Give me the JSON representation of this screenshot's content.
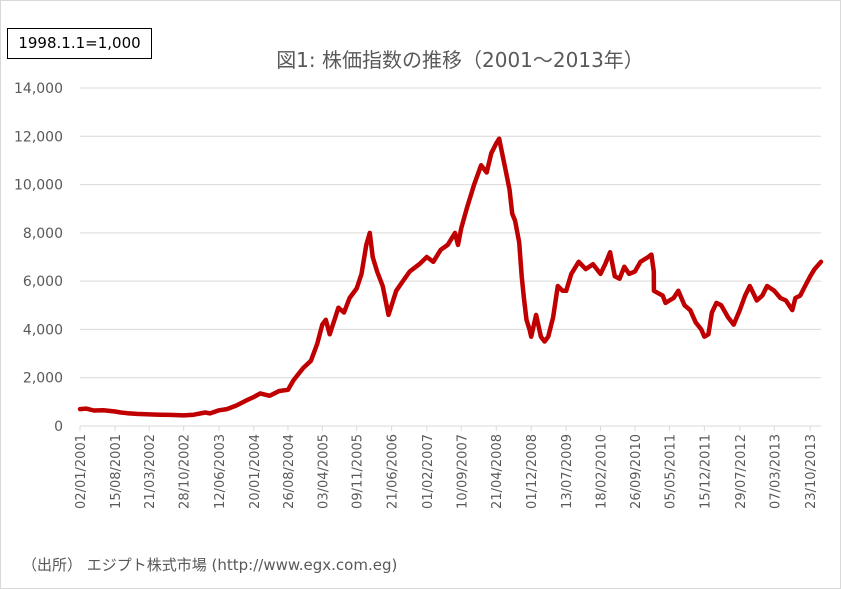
{
  "base_note": "1998.1.1=1,000",
  "source_note": "（出所） エジプト株式市場 (http://www.egx.com.eg)",
  "colors": {
    "series": "#c00000",
    "grid": "#d9d9d9",
    "text": "#595959"
  },
  "chart_data": {
    "type": "line",
    "title": "図1: 株価指数の推移（2001～2013年）",
    "xlabel": "",
    "ylabel": "",
    "ylim": [
      0,
      14000
    ],
    "yticks": [
      0,
      2000,
      4000,
      6000,
      8000,
      10000,
      12000,
      14000
    ],
    "ytick_labels": [
      "0",
      "2,000",
      "4,000",
      "6,000",
      "8,000",
      "10,000",
      "12,000",
      "14,000"
    ],
    "xlim": [
      "2001-01-02",
      "2013-12-31"
    ],
    "xticks": [
      "2001-01-02",
      "2001-08-15",
      "2002-03-21",
      "2002-10-28",
      "2003-06-12",
      "2004-01-20",
      "2004-08-26",
      "2005-04-03",
      "2005-11-09",
      "2006-06-21",
      "2007-02-01",
      "2007-09-10",
      "2008-04-21",
      "2008-12-01",
      "2009-07-13",
      "2010-02-18",
      "2010-09-26",
      "2011-05-05",
      "2011-12-15",
      "2012-07-29",
      "2013-03-07",
      "2013-10-23"
    ],
    "xtick_labels": [
      "02/01/2001",
      "15/08/2001",
      "21/03/2002",
      "28/10/2002",
      "12/06/2003",
      "20/01/2004",
      "26/08/2004",
      "03/04/2005",
      "09/11/2005",
      "21/06/2006",
      "01/02/2007",
      "10/09/2007",
      "21/04/2008",
      "01/12/2008",
      "13/07/2009",
      "18/02/2010",
      "26/09/2010",
      "05/05/2011",
      "15/12/2011",
      "29/07/2012",
      "07/03/2013",
      "23/10/2013"
    ],
    "grid": "horizontal",
    "legend": "none",
    "series": [
      {
        "color": "#c00000",
        "points": [
          [
            "2001-01-02",
            700
          ],
          [
            "2001-02-10",
            720
          ],
          [
            "2001-04-01",
            640
          ],
          [
            "2001-06-01",
            650
          ],
          [
            "2001-08-15",
            600
          ],
          [
            "2001-09-20",
            560
          ],
          [
            "2001-11-01",
            530
          ],
          [
            "2002-01-01",
            500
          ],
          [
            "2002-03-21",
            480
          ],
          [
            "2002-06-01",
            470
          ],
          [
            "2002-08-01",
            460
          ],
          [
            "2002-10-28",
            440
          ],
          [
            "2003-01-01",
            470
          ],
          [
            "2003-03-15",
            560
          ],
          [
            "2003-04-15",
            520
          ],
          [
            "2003-06-12",
            650
          ],
          [
            "2003-08-01",
            700
          ],
          [
            "2003-10-01",
            850
          ],
          [
            "2003-12-01",
            1050
          ],
          [
            "2004-01-20",
            1200
          ],
          [
            "2004-03-01",
            1350
          ],
          [
            "2004-05-01",
            1250
          ],
          [
            "2004-07-01",
            1450
          ],
          [
            "2004-08-26",
            1500
          ],
          [
            "2004-10-01",
            1900
          ],
          [
            "2004-12-01",
            2400
          ],
          [
            "2005-01-20",
            2700
          ],
          [
            "2005-03-01",
            3400
          ],
          [
            "2005-04-03",
            4200
          ],
          [
            "2005-04-25",
            4400
          ],
          [
            "2005-05-20",
            3800
          ],
          [
            "2005-06-20",
            4400
          ],
          [
            "2005-07-15",
            4900
          ],
          [
            "2005-08-20",
            4700
          ],
          [
            "2005-09-25",
            5300
          ],
          [
            "2005-11-09",
            5700
          ],
          [
            "2005-12-10",
            6300
          ],
          [
            "2006-01-10",
            7500
          ],
          [
            "2006-02-01",
            8000
          ],
          [
            "2006-02-20",
            7000
          ],
          [
            "2006-03-20",
            6400
          ],
          [
            "2006-04-25",
            5800
          ],
          [
            "2006-05-20",
            5000
          ],
          [
            "2006-06-01",
            4600
          ],
          [
            "2006-06-21",
            5000
          ],
          [
            "2006-07-20",
            5600
          ],
          [
            "2006-09-01",
            6000
          ],
          [
            "2006-10-15",
            6400
          ],
          [
            "2006-12-15",
            6700
          ],
          [
            "2007-02-01",
            7000
          ],
          [
            "2007-03-15",
            6800
          ],
          [
            "2007-05-01",
            7300
          ],
          [
            "2007-06-15",
            7500
          ],
          [
            "2007-08-01",
            8000
          ],
          [
            "2007-08-20",
            7500
          ],
          [
            "2007-09-10",
            8200
          ],
          [
            "2007-10-15",
            9000
          ],
          [
            "2007-12-01",
            10000
          ],
          [
            "2008-01-15",
            10800
          ],
          [
            "2008-02-20",
            10500
          ],
          [
            "2008-03-20",
            11300
          ],
          [
            "2008-04-21",
            11700
          ],
          [
            "2008-05-10",
            11900
          ],
          [
            "2008-06-01",
            11200
          ],
          [
            "2008-06-20",
            10600
          ],
          [
            "2008-07-15",
            9800
          ],
          [
            "2008-08-01",
            8800
          ],
          [
            "2008-08-20",
            8500
          ],
          [
            "2008-09-15",
            7600
          ],
          [
            "2008-10-01",
            6200
          ],
          [
            "2008-10-15",
            5300
          ],
          [
            "2008-11-01",
            4400
          ],
          [
            "2008-11-20",
            4000
          ],
          [
            "2008-12-01",
            3700
          ],
          [
            "2009-01-01",
            4600
          ],
          [
            "2009-02-01",
            3700
          ],
          [
            "2009-02-25",
            3500
          ],
          [
            "2009-03-20",
            3700
          ],
          [
            "2009-04-20",
            4500
          ],
          [
            "2009-05-20",
            5800
          ],
          [
            "2009-06-20",
            5600
          ],
          [
            "2009-07-13",
            5600
          ],
          [
            "2009-08-15",
            6300
          ],
          [
            "2009-10-01",
            6800
          ],
          [
            "2009-11-15",
            6500
          ],
          [
            "2010-01-01",
            6700
          ],
          [
            "2010-02-18",
            6300
          ],
          [
            "2010-03-20",
            6700
          ],
          [
            "2010-04-20",
            7200
          ],
          [
            "2010-05-20",
            6200
          ],
          [
            "2010-06-20",
            6100
          ],
          [
            "2010-07-20",
            6600
          ],
          [
            "2010-08-20",
            6300
          ],
          [
            "2010-09-26",
            6400
          ],
          [
            "2010-11-01",
            6800
          ],
          [
            "2010-12-20",
            7000
          ],
          [
            "2011-01-10",
            7100
          ],
          [
            "2011-01-25",
            6400
          ],
          [
            "2011-01-26",
            5600
          ],
          [
            "2011-03-23",
            5400
          ],
          [
            "2011-04-10",
            5100
          ],
          [
            "2011-05-05",
            5200
          ],
          [
            "2011-06-01",
            5300
          ],
          [
            "2011-07-01",
            5600
          ],
          [
            "2011-08-10",
            5000
          ],
          [
            "2011-09-15",
            4800
          ],
          [
            "2011-10-20",
            4300
          ],
          [
            "2011-11-25",
            4000
          ],
          [
            "2011-12-15",
            3700
          ],
          [
            "2012-01-10",
            3800
          ],
          [
            "2012-02-01",
            4700
          ],
          [
            "2012-03-01",
            5100
          ],
          [
            "2012-04-01",
            5000
          ],
          [
            "2012-05-15",
            4500
          ],
          [
            "2012-06-20",
            4200
          ],
          [
            "2012-07-29",
            4800
          ],
          [
            "2012-09-01",
            5400
          ],
          [
            "2012-10-01",
            5800
          ],
          [
            "2012-11-15",
            5200
          ],
          [
            "2012-12-20",
            5400
          ],
          [
            "2013-01-20",
            5800
          ],
          [
            "2013-03-07",
            5600
          ],
          [
            "2013-04-15",
            5300
          ],
          [
            "2013-05-20",
            5200
          ],
          [
            "2013-06-30",
            4800
          ],
          [
            "2013-07-20",
            5300
          ],
          [
            "2013-08-20",
            5400
          ],
          [
            "2013-09-20",
            5800
          ],
          [
            "2013-10-23",
            6200
          ],
          [
            "2013-11-20",
            6500
          ],
          [
            "2013-12-31",
            6800
          ]
        ]
      }
    ]
  }
}
